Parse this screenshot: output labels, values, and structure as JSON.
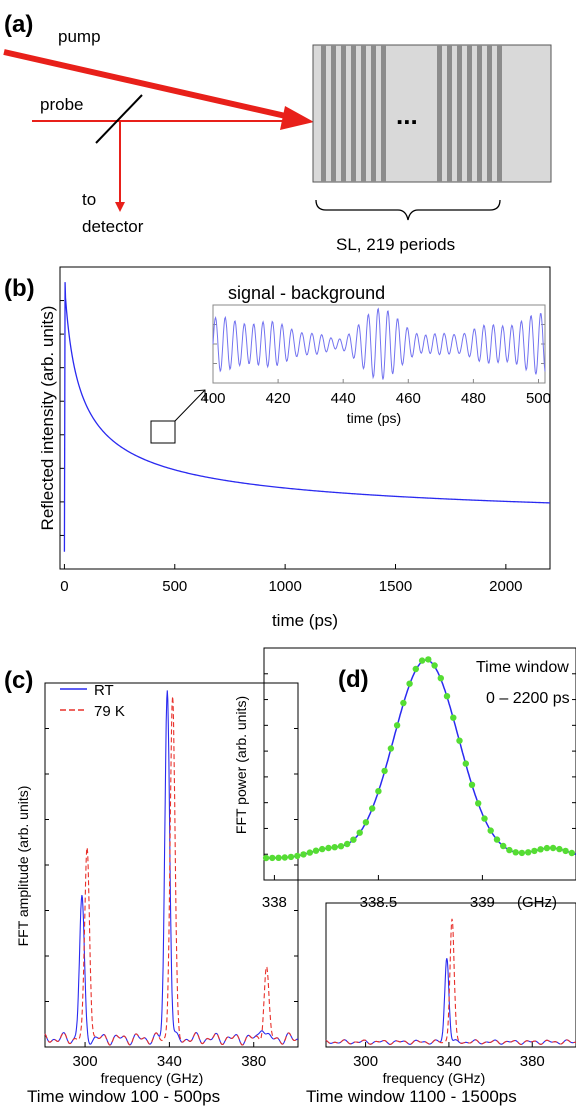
{
  "panels": {
    "a": {
      "label": "(a)",
      "pump": "pump",
      "probe": "probe",
      "to": "to",
      "detector": "detector",
      "ellipsis": "...",
      "sl_label": "SL, 219 periods",
      "colors": {
        "beam": "#e8201a",
        "sample_bg": "#d9d9d9",
        "stripe": "#8c8c8c"
      }
    },
    "b": {
      "label": "(b)"
    },
    "c": {
      "label": "(c)"
    },
    "d": {
      "label": "(d)"
    }
  },
  "captions": {
    "c_window": "Time window 100 - 500ps",
    "right_window": "Time window 1100 - 1500ps"
  },
  "chart_data": [
    {
      "id": "b-main",
      "type": "line",
      "xlabel": "time (ps)",
      "ylabel": "Reflected intensity (arb. units)",
      "xlim": [
        -20,
        2200
      ],
      "xticks": [
        0,
        500,
        1000,
        1500,
        2000
      ],
      "color": "#2a2af0",
      "series": [
        {
          "x": [
            0,
            5,
            20,
            50,
            100,
            200,
            300,
            400,
            500,
            700,
            1000,
            1500,
            2000,
            2200
          ],
          "y": [
            1.0,
            0.97,
            0.9,
            0.84,
            0.77,
            0.69,
            0.62,
            0.57,
            0.52,
            0.45,
            0.38,
            0.3,
            0.25,
            0.23
          ]
        }
      ]
    },
    {
      "id": "b-inset",
      "type": "line",
      "title": "signal - background",
      "xlabel": "time (ps)",
      "xlim": [
        400,
        502
      ],
      "xticks": [
        400,
        420,
        440,
        460,
        480,
        500
      ],
      "color": "#7373f0",
      "freq_ghz": 340
    },
    {
      "id": "c",
      "type": "line",
      "xlabel": "frequency (GHz)",
      "ylabel": "FFT amplitude (arb. units)",
      "xlim": [
        281,
        401
      ],
      "xticks": [
        300,
        340,
        380
      ],
      "legend": "top-left",
      "series": [
        {
          "name": "RT",
          "color": "#2a2af0",
          "dash": false,
          "peaks": [
            [
              298.5,
              0.4
            ],
            [
              339,
              1.0
            ],
            [
              384,
              0.04
            ]
          ],
          "width": 1.6
        },
        {
          "name": "79 K",
          "color": "#e8302a",
          "dash": true,
          "peaks": [
            [
              301,
              0.55
            ],
            [
              341.5,
              0.98
            ],
            [
              386,
              0.2
            ]
          ],
          "width": 1.6
        }
      ]
    },
    {
      "id": "d",
      "type": "line",
      "xlabel": "(GHz)",
      "ylabel": "FFT power (arb. units)",
      "xlim": [
        337.95,
        339.45
      ],
      "xticks": [
        338,
        338.5,
        339
      ],
      "annotation": [
        "Time window",
        "0 – 2200 ps"
      ],
      "line_color": "#2a2af0",
      "marker_color": "#55dd33",
      "peak_center": 338.73,
      "peak_width": 0.22
    },
    {
      "id": "c-right",
      "type": "line",
      "xlabel": "frequency (GHz)",
      "xlim": [
        281,
        401
      ],
      "xticks": [
        300,
        340,
        380
      ],
      "series": [
        {
          "name": "RT",
          "color": "#2a2af0",
          "dash": false,
          "peaks": [
            [
              339,
              0.65
            ]
          ],
          "width": 1.4
        },
        {
          "name": "79 K",
          "color": "#e8302a",
          "dash": true,
          "peaks": [
            [
              341.5,
              0.95
            ]
          ],
          "width": 1.4
        }
      ]
    }
  ]
}
